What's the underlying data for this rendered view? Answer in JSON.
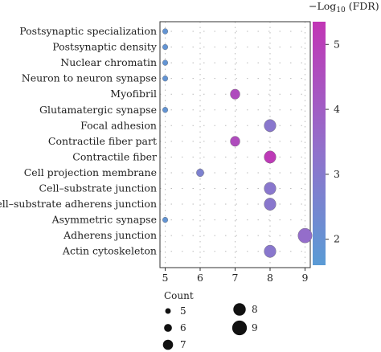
{
  "chart_data": {
    "type": "scatter",
    "x_ticks": [
      5,
      6,
      7,
      8,
      9
    ],
    "xlim": [
      4.85,
      9.15
    ],
    "categories": [
      "Postsynaptic specialization",
      "Postsynaptic density",
      "Nuclear chromatin",
      "Neuron to neuron synapse",
      "Myofibril",
      "Glutamatergic synapse",
      "Focal adhesion",
      "Contractile fiber part",
      "Contractile fiber",
      "Cell projection membrane",
      "Cell–substrate junction",
      "Cell–substrate adherens junction",
      "Asymmetric synapse",
      "Adherens junction",
      "Actin cytoskeleton"
    ],
    "points": [
      {
        "term": "Postsynaptic specialization",
        "count": 5,
        "neg_log10_fdr": 1.9
      },
      {
        "term": "Postsynaptic density",
        "count": 5,
        "neg_log10_fdr": 1.9
      },
      {
        "term": "Nuclear chromatin",
        "count": 5,
        "neg_log10_fdr": 1.9
      },
      {
        "term": "Neuron to neuron synapse",
        "count": 5,
        "neg_log10_fdr": 1.9
      },
      {
        "term": "Myofibril",
        "count": 7,
        "neg_log10_fdr": 4.6
      },
      {
        "term": "Glutamatergic synapse",
        "count": 5,
        "neg_log10_fdr": 1.9
      },
      {
        "term": "Focal adhesion",
        "count": 8,
        "neg_log10_fdr": 3.1
      },
      {
        "term": "Contractile fiber part",
        "count": 7,
        "neg_log10_fdr": 4.6
      },
      {
        "term": "Contractile fiber",
        "count": 8,
        "neg_log10_fdr": 5.2
      },
      {
        "term": "Cell projection membrane",
        "count": 6,
        "neg_log10_fdr": 2.7
      },
      {
        "term": "Cell–substrate junction",
        "count": 8,
        "neg_log10_fdr": 3.1
      },
      {
        "term": "Cell–substrate adherens junction",
        "count": 8,
        "neg_log10_fdr": 3.1
      },
      {
        "term": "Asymmetric synapse",
        "count": 5,
        "neg_log10_fdr": 1.9
      },
      {
        "term": "Adherens junction",
        "count": 9,
        "neg_log10_fdr": 3.5
      },
      {
        "term": "Actin cytoskeleton",
        "count": 8,
        "neg_log10_fdr": 3.1
      }
    ],
    "colorbar": {
      "title_prefix": "−Log",
      "title_sub": "10",
      "title_suffix": " (FDR)",
      "range": [
        1.6,
        5.35
      ],
      "ticks": [
        2,
        3,
        4,
        5
      ],
      "colors": [
        "#5a9bd5",
        "#8f73cc",
        "#c136b5"
      ]
    },
    "size_legend": {
      "title": "Count",
      "entries": [
        5,
        6,
        7,
        8,
        9
      ]
    },
    "grid": "dotted",
    "xlabel": "",
    "ylabel": ""
  }
}
